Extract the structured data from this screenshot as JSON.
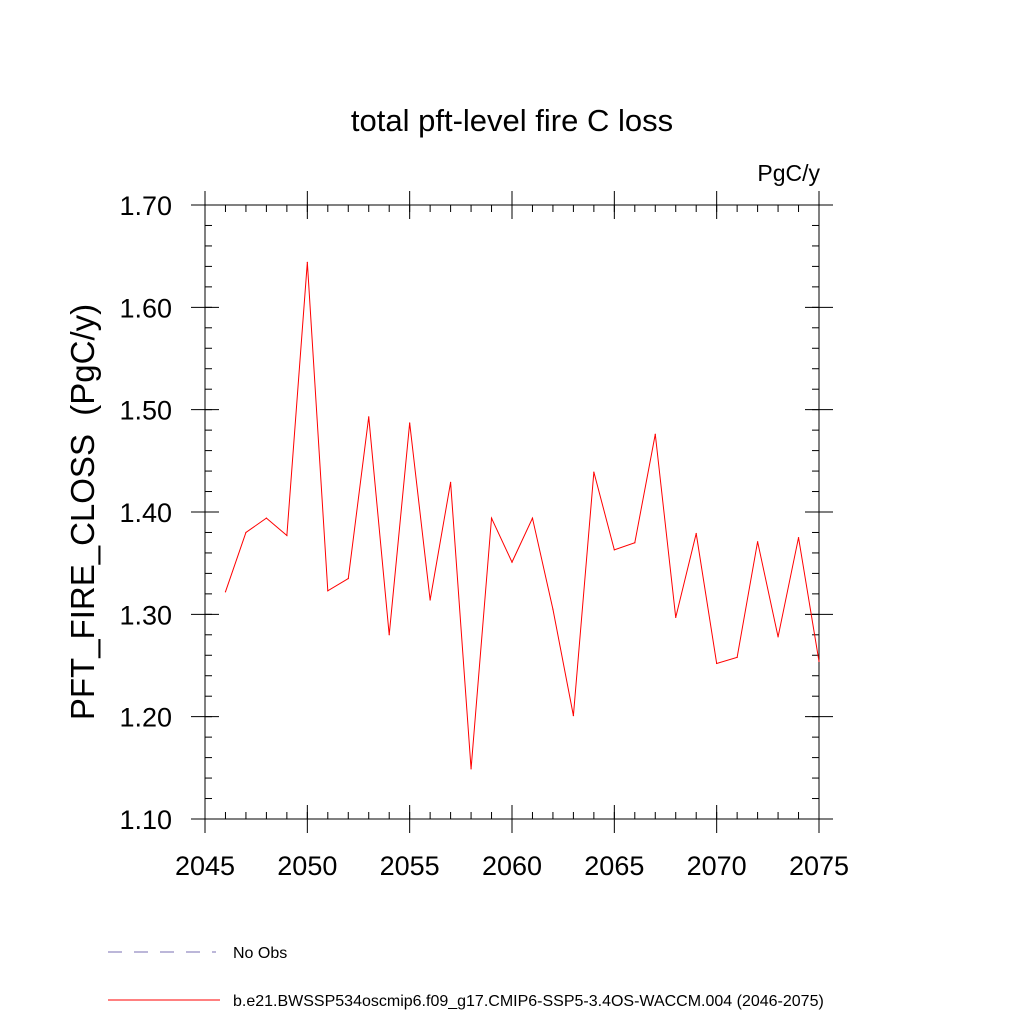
{
  "chart_data": {
    "type": "line",
    "title": "total pft-level fire C loss",
    "units_label": "PgC/y",
    "ylabel": "PFT_FIRE_CLOSS  (PgC/y)",
    "xlabel": "",
    "xlim": [
      2045,
      2075
    ],
    "ylim": [
      1.1,
      1.7
    ],
    "x_ticks": [
      2045,
      2050,
      2055,
      2060,
      2065,
      2070,
      2075
    ],
    "x_tick_labels": [
      "2045",
      "2050",
      "2055",
      "2060",
      "2065",
      "2070",
      "2075"
    ],
    "y_ticks": [
      1.1,
      1.2,
      1.3,
      1.4,
      1.5,
      1.6,
      1.7
    ],
    "y_tick_labels": [
      "1.10",
      "1.20",
      "1.30",
      "1.40",
      "1.50",
      "1.60",
      "1.70"
    ],
    "x_minor_step": 1,
    "y_minor_step": 0.02,
    "grid": false,
    "series": [
      {
        "name": "b.e21.BWSSP534oscmip6.f09_g17.CMIP6-SSP5-3.4OS-WACCM.004 (2046-2075)",
        "color": "#ff0000",
        "style": "solid",
        "x": [
          2046,
          2047,
          2048,
          2049,
          2050,
          2051,
          2052,
          2053,
          2054,
          2055,
          2056,
          2057,
          2058,
          2059,
          2060,
          2061,
          2062,
          2063,
          2064,
          2065,
          2066,
          2067,
          2068,
          2069,
          2070,
          2071,
          2072,
          2073,
          2074,
          2075
        ],
        "values": [
          1.322,
          1.38,
          1.394,
          1.377,
          1.644,
          1.323,
          1.335,
          1.493,
          1.28,
          1.487,
          1.314,
          1.429,
          1.149,
          1.394,
          1.351,
          1.394,
          1.305,
          1.201,
          1.439,
          1.363,
          1.37,
          1.476,
          1.297,
          1.379,
          1.252,
          1.258,
          1.371,
          1.278,
          1.375,
          1.254
        ]
      }
    ],
    "legend": {
      "placement": "bottom-left",
      "entries": [
        {
          "label": "No Obs",
          "color": "#7a6fb3",
          "style": "dashed"
        },
        {
          "label": "b.e21.BWSSP534oscmip6.f09_g17.CMIP6-SSP5-3.4OS-WACCM.004 (2046-2075)",
          "color": "#ff0000",
          "style": "solid"
        }
      ]
    }
  }
}
